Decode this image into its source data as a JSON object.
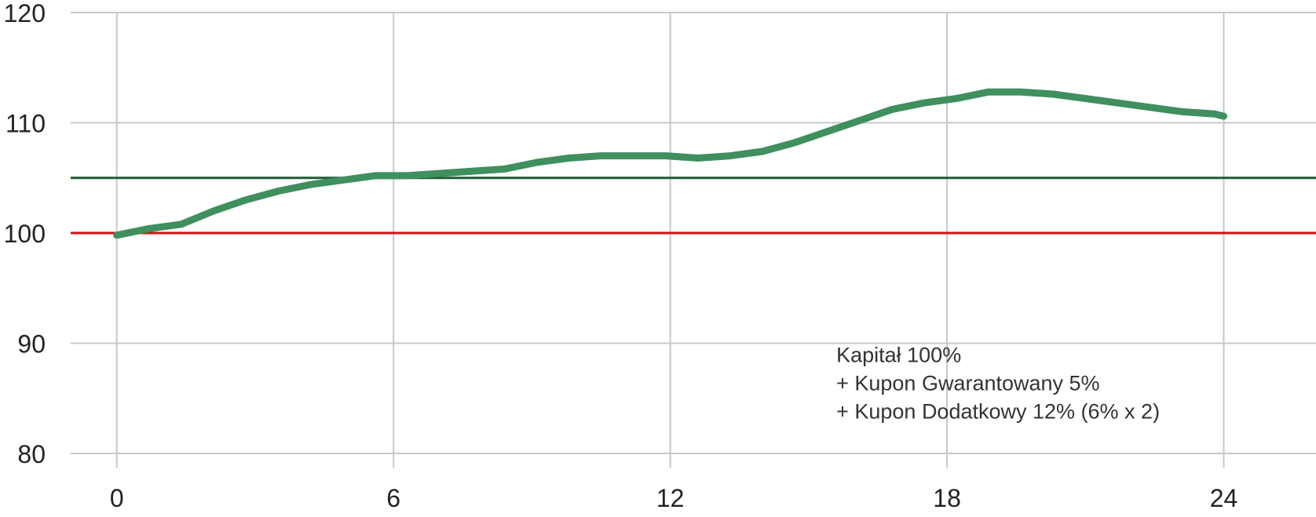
{
  "chart_data": {
    "type": "line",
    "title": "",
    "xlabel": "",
    "ylabel": "",
    "xlim": [
      -1,
      26
    ],
    "ylim": [
      80,
      120
    ],
    "x_ticks": [
      0,
      6,
      12,
      18,
      24
    ],
    "y_ticks": [
      80,
      90,
      100,
      110,
      120
    ],
    "x_tick_labels": [
      "0",
      "6",
      "12",
      "18",
      "24"
    ],
    "y_tick_labels": [
      "80",
      "90",
      "100",
      "110",
      "120"
    ],
    "grid": true,
    "legend": "none",
    "series": [
      {
        "color": "#3f8f5f",
        "x": [
          0,
          0.7,
          1.4,
          2.1,
          2.8,
          3.5,
          4.2,
          4.9,
          5.6,
          6.3,
          7.0,
          7.7,
          8.4,
          9.1,
          9.8,
          10.5,
          11.2,
          11.9,
          12.6,
          13.3,
          14.0,
          14.7,
          15.4,
          16.1,
          16.8,
          17.5,
          18.2,
          18.9,
          19.6,
          20.3,
          21.0,
          21.7,
          22.4,
          23.1,
          23.8,
          24.0
        ],
        "values": [
          99.8,
          100.4,
          100.8,
          102.0,
          103.0,
          103.8,
          104.4,
          104.8,
          105.2,
          105.2,
          105.4,
          105.6,
          105.8,
          106.4,
          106.8,
          107.0,
          107.0,
          107.0,
          106.8,
          107.0,
          107.4,
          108.2,
          109.2,
          110.2,
          111.2,
          111.8,
          112.2,
          112.8,
          112.8,
          112.6,
          112.2,
          111.8,
          111.4,
          111.0,
          110.8,
          110.6
        ]
      }
    ],
    "reference_lines": [
      {
        "y": 105.0,
        "color": "#1f5a35"
      },
      {
        "y": 100.0,
        "color": "#d01010"
      }
    ],
    "annotation": [
      "Kapitał 100%",
      "+ Kupon Gwarantowany 5%",
      "+ Kupon Dodatkowy 12% (6% x 2)"
    ]
  }
}
